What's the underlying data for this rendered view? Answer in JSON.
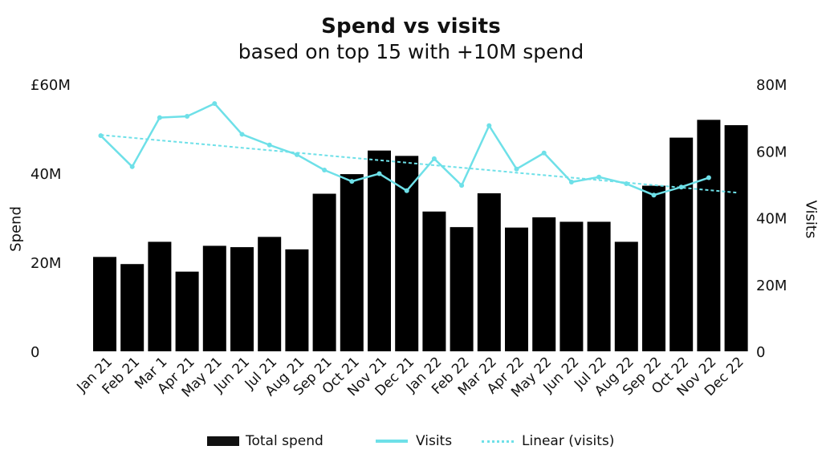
{
  "chart_data": {
    "type": "bar",
    "title": "Spend vs visits",
    "subtitle": "based on top 15 with +10M spend",
    "ylabel_left": "Spend",
    "ylabel_right": "Visits",
    "left_ticks": [
      "0",
      "20M",
      "40M",
      "£60M"
    ],
    "left_tick_values": [
      0,
      20,
      40,
      60
    ],
    "right_ticks": [
      "0",
      "20M",
      "40M",
      "60M",
      "80M"
    ],
    "right_tick_values": [
      0,
      20,
      40,
      60,
      80
    ],
    "ylim_left": [
      0,
      60
    ],
    "ylim_right": [
      0,
      80
    ],
    "categories": [
      "Jan 21",
      "Feb 21",
      "Mar 1",
      "Apr 21",
      "May 21",
      "Jun 21",
      "Jul 21",
      "Aug 21",
      "Sep 21",
      "Oct 21",
      "Nov 21",
      "Dec 21",
      "Jan 22",
      "Feb 22",
      "Mar 22",
      "Apr 22",
      "May 22",
      "Jun 22",
      "Jul 22",
      "Aug 22",
      "Sep 22",
      "Oct 22",
      "Nov 22",
      "Dec 22"
    ],
    "series": [
      {
        "name": "Total spend",
        "type": "bar",
        "axis": "left",
        "values": [
          21.2,
          19.6,
          24.6,
          17.9,
          23.7,
          23.4,
          25.7,
          22.9,
          35.4,
          39.8,
          45.1,
          43.9,
          31.4,
          27.9,
          35.5,
          27.8,
          30.1,
          29.1,
          29.1,
          24.6,
          37.2,
          48.0,
          52.0,
          50.8
        ]
      },
      {
        "name": "Visits",
        "type": "line",
        "axis": "right",
        "values": [
          64.6,
          55.3,
          70.0,
          70.4,
          74.2,
          65.0,
          61.8,
          58.9,
          54.3,
          50.9,
          53.2,
          48.1,
          57.7,
          49.7,
          67.6,
          54.6,
          59.4,
          50.7,
          52.2,
          50.2,
          46.8,
          49.2,
          52.0,
          null
        ]
      },
      {
        "name": "Linear (visits)",
        "type": "trendline",
        "axis": "right",
        "start": 64.8,
        "end": 47.5
      }
    ],
    "colors": {
      "bar": "#000000",
      "visits": "#6ee0e8",
      "trend": "#6ee0e8"
    },
    "grid": false,
    "legend_position": "bottom"
  }
}
